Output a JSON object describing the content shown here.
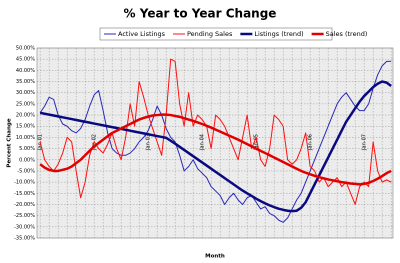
{
  "chart_data": {
    "type": "line",
    "title": "% Year to Year Change",
    "xlabel": "Month",
    "ylabel": "Percent Change",
    "categories": [
      "Jan-01",
      null,
      null,
      null,
      null,
      null,
      null,
      null,
      null,
      null,
      null,
      null,
      "Jan-02",
      null,
      null,
      null,
      null,
      null,
      null,
      null,
      null,
      null,
      null,
      null,
      "Jan-03",
      null,
      null,
      null,
      null,
      null,
      null,
      null,
      null,
      null,
      null,
      null,
      "Jan-04",
      null,
      null,
      null,
      null,
      null,
      null,
      null,
      null,
      null,
      null,
      null,
      "Jan-05",
      null,
      null,
      null,
      null,
      null,
      null,
      null,
      null,
      null,
      null,
      null,
      "Jan-06",
      null,
      null,
      null,
      null,
      null,
      null,
      null,
      null,
      null,
      null,
      null,
      "Jan-07",
      null,
      null,
      null,
      null,
      null,
      null
    ],
    "series": [
      {
        "name": "Active Listings",
        "color": "#2a2ab8",
        "width": 1,
        "values": [
          21,
          24,
          28,
          27,
          20,
          16,
          15,
          13,
          12,
          14,
          18,
          24,
          29,
          31,
          22,
          12,
          5,
          3,
          2,
          2,
          3,
          5,
          8,
          10,
          13,
          18,
          24,
          20,
          14,
          10,
          8,
          2,
          -5,
          -3,
          0,
          -4,
          -6,
          -8,
          -12,
          -14,
          -16,
          -20,
          -17,
          -15,
          -18,
          -20,
          -17,
          -16,
          -19,
          -22,
          -21,
          -24,
          -25,
          -27,
          -28,
          -26,
          -22,
          -18,
          -15,
          -10,
          -5,
          0,
          5,
          10,
          15,
          20,
          25,
          28,
          30,
          27,
          24,
          22,
          22,
          25,
          32,
          38,
          42,
          44,
          44
        ]
      },
      {
        "name": "Pending Sales",
        "color": "#ff1010",
        "width": 1,
        "values": [
          8,
          0,
          -3,
          -5,
          -2,
          3,
          10,
          8,
          -5,
          -17,
          -10,
          2,
          8,
          5,
          3,
          7,
          12,
          5,
          0,
          10,
          25,
          15,
          35,
          28,
          20,
          14,
          8,
          2,
          20,
          45,
          44,
          25,
          15,
          30,
          15,
          20,
          18,
          15,
          5,
          20,
          18,
          15,
          10,
          5,
          0,
          10,
          20,
          5,
          10,
          0,
          -3,
          5,
          20,
          18,
          15,
          0,
          -2,
          0,
          5,
          12,
          -3,
          -5,
          -10,
          -8,
          -12,
          -10,
          -8,
          -12,
          -10,
          -15,
          -20,
          -12,
          -10,
          -12,
          8,
          -5,
          -10,
          -9,
          -10
        ]
      },
      {
        "name": "Listings (trend)",
        "color": "#0a0a80",
        "width": 2.5,
        "values": [
          21,
          20.6,
          20.2,
          19.8,
          19.4,
          19,
          18.6,
          18.2,
          17.8,
          17.4,
          17,
          16.6,
          16.2,
          15.8,
          15.4,
          15,
          14.6,
          14.2,
          13.8,
          13.4,
          13,
          12.6,
          12.2,
          11.8,
          11.4,
          11,
          10.6,
          10.2,
          9.8,
          8.5,
          7.2,
          5.8,
          4.4,
          3,
          1.6,
          0.2,
          -1.2,
          -2.6,
          -4,
          -5.4,
          -6.8,
          -8.2,
          -9.6,
          -11,
          -12.4,
          -13.8,
          -15,
          -16.2,
          -17.4,
          -18.5,
          -19.5,
          -20.4,
          -21.2,
          -21.9,
          -22.4,
          -22.8,
          -23,
          -22.8,
          -21.5,
          -19,
          -15,
          -11,
          -7,
          -3,
          1,
          5,
          9,
          13,
          17,
          20,
          23,
          26,
          28.5,
          30.5,
          32.5,
          34,
          35,
          34.5,
          33
        ]
      },
      {
        "name": "Sales (trend)",
        "color": "#e00000",
        "width": 2.5,
        "values": [
          -2,
          -3.5,
          -4.5,
          -5,
          -5,
          -4.5,
          -4,
          -3,
          -1.5,
          0,
          2,
          4,
          6,
          7.5,
          9,
          10.5,
          12,
          13,
          14,
          15,
          16,
          17,
          18,
          18.7,
          19.3,
          19.8,
          20,
          20.2,
          20.2,
          20,
          19.6,
          19.2,
          18.6,
          18,
          17.4,
          16.7,
          16,
          15.2,
          14.4,
          13.5,
          12.6,
          11.7,
          10.8,
          9.9,
          9,
          8,
          7,
          6,
          5,
          4,
          3,
          2,
          1,
          0,
          -1,
          -2,
          -3,
          -4,
          -5,
          -5.8,
          -6.5,
          -7.2,
          -7.8,
          -8.3,
          -8.8,
          -9.2,
          -9.6,
          -10,
          -10.3,
          -10.6,
          -10.8,
          -11,
          -10.8,
          -10.3,
          -9.5,
          -8.5,
          -7.3,
          -6,
          -5
        ]
      }
    ],
    "ylim": [
      -35,
      50
    ],
    "yticks": [
      {
        "value": -35,
        "label": "-35.00%"
      },
      {
        "value": -30,
        "label": "-30.00%"
      },
      {
        "value": -25,
        "label": "-25.00%"
      },
      {
        "value": -20,
        "label": "-20.00%"
      },
      {
        "value": -15,
        "label": "-15.00%"
      },
      {
        "value": -10,
        "label": "-10.00%"
      },
      {
        "value": -5,
        "label": "-5.00%"
      },
      {
        "value": 0,
        "label": "0.00%"
      },
      {
        "value": 5,
        "label": "5.00%"
      },
      {
        "value": 10,
        "label": "10.00%"
      },
      {
        "value": 15,
        "label": "15.00%"
      },
      {
        "value": 20,
        "label": "20.00%"
      },
      {
        "value": 25,
        "label": "25.00%"
      },
      {
        "value": 30,
        "label": "30.00%"
      },
      {
        "value": 35,
        "label": "35.00%"
      },
      {
        "value": 40,
        "label": "40.00%"
      },
      {
        "value": 45,
        "label": "45.00%"
      },
      {
        "value": 50,
        "label": "50.00%"
      }
    ],
    "grid": true,
    "legend": "top"
  }
}
